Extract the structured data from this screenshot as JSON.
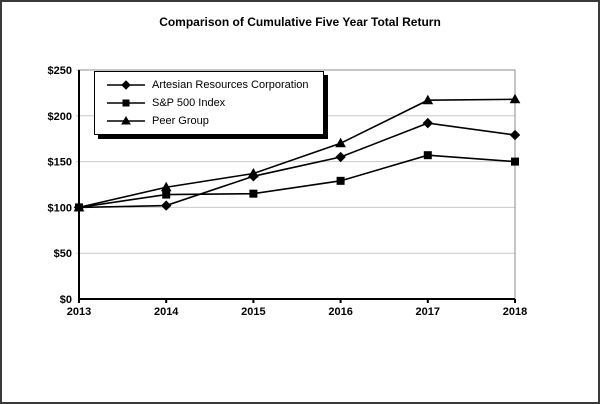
{
  "chart_data": {
    "type": "line",
    "title": "Comparison of Cumulative Five Year Total Return",
    "categories": [
      "2013",
      "2014",
      "2015",
      "2016",
      "2017",
      "2018"
    ],
    "series": [
      {
        "name": "Artesian Resources Corporation",
        "marker": "diamond",
        "values": [
          100,
          102,
          134,
          155,
          192,
          179
        ]
      },
      {
        "name": "S&P 500 Index",
        "marker": "square",
        "values": [
          100,
          114,
          115,
          129,
          157,
          150
        ]
      },
      {
        "name": "Peer Group",
        "marker": "triangle",
        "values": [
          100,
          122,
          137,
          170,
          217,
          218
        ]
      }
    ],
    "xlabel": "",
    "ylabel": "",
    "ylim": [
      0,
      250
    ],
    "y_ticks": [
      0,
      50,
      100,
      150,
      200,
      250
    ],
    "y_tick_labels": [
      "$0",
      "$50",
      "$100",
      "$150",
      "$200",
      "$250"
    ],
    "grid": "horizontal",
    "legend_position": "top-left-inside",
    "colors": {
      "series": "#000000",
      "gridline": "#c9c9c9",
      "plot_border": "#8c8c8c",
      "axis": "#000000",
      "background": "#ffffff",
      "frame_border": "#3a3a3a"
    }
  }
}
